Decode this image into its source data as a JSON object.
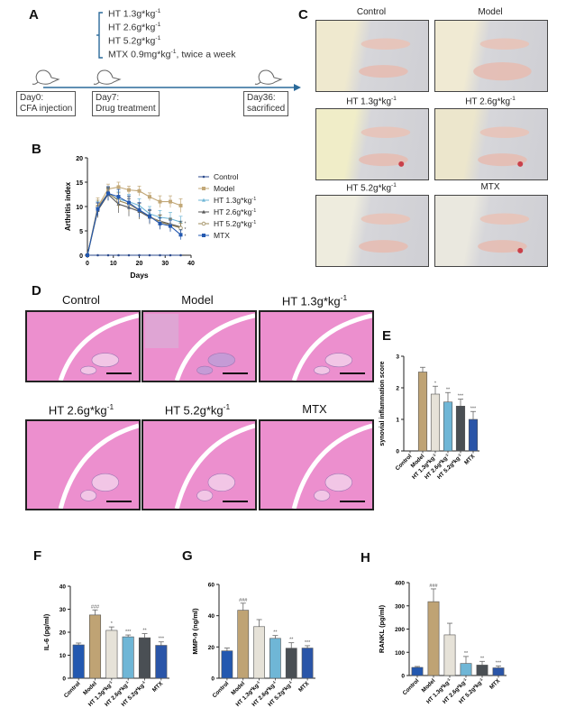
{
  "panels": {
    "A": "A",
    "B": "B",
    "C": "C",
    "D": "D",
    "E": "E",
    "F": "F",
    "G": "G",
    "H": "H"
  },
  "timeline": {
    "treatments": [
      "HT 1.3g*kg",
      "HT 2.6g*kg",
      "HT 5.2g*kg",
      "MTX 0.9mg*kg"
    ],
    "treatment_sup": "-1",
    "frequency": ",  twice a week",
    "events": [
      {
        "line1": "Day0:",
        "line2": "CFA injection"
      },
      {
        "line1": "Day7:",
        "line2": "Drug treatment"
      },
      {
        "line1": "Day36:",
        "line2": "sacrificed"
      }
    ]
  },
  "photos": {
    "titles": [
      "Control",
      "Model",
      "HT 1.3g*kg",
      "HT 2.6g*kg",
      "HT 5.2g*kg",
      "MTX"
    ],
    "sup": "-1",
    "has_sup": [
      false,
      false,
      true,
      true,
      true,
      false
    ]
  },
  "histology": {
    "titles": [
      "Control",
      "Model",
      "HT 1.3g*kg",
      "HT 2.6g*kg",
      "HT 5.2g*kg",
      "MTX"
    ],
    "sup": "-1",
    "has_sup": [
      false,
      false,
      true,
      true,
      true,
      false
    ]
  },
  "chart_data": [
    {
      "id": "B",
      "type": "line",
      "title": "",
      "xlabel": "Days",
      "ylabel": "Arthritis index",
      "xlim": [
        0,
        40
      ],
      "ylim": [
        0,
        20
      ],
      "xticks": [
        0,
        10,
        20,
        30,
        40
      ],
      "yticks": [
        0,
        5,
        10,
        15,
        20
      ],
      "x": [
        0,
        4,
        8,
        12,
        16,
        20,
        24,
        28,
        32,
        36
      ],
      "legend_position": "right",
      "series": [
        {
          "name": "Control",
          "color": "#2b4a8c",
          "marker": "dot",
          "values": [
            0,
            0,
            0,
            0,
            0,
            0,
            0,
            0,
            0,
            0
          ],
          "errors": [
            0,
            0,
            0,
            0,
            0,
            0,
            0,
            0,
            0,
            0
          ]
        },
        {
          "name": "Model",
          "color": "#c2a878",
          "marker": "square",
          "values": [
            0,
            10,
            13.6,
            14,
            13.4,
            13.2,
            12,
            11,
            11,
            10.2
          ],
          "errors": [
            0,
            1.8,
            1,
            1,
            0.8,
            1,
            0.8,
            1.2,
            1.2,
            1.4
          ]
        },
        {
          "name": "HT 1.3g*kg-1",
          "color": "#6fb6d6",
          "marker": "triangle",
          "values": [
            0,
            9.5,
            12.6,
            11.5,
            11,
            10.2,
            8.5,
            7.8,
            7.5,
            6.8
          ],
          "errors": [
            0,
            1.5,
            1.2,
            1.5,
            1.5,
            1.4,
            1.5,
            1.4,
            1.3,
            1.2
          ]
        },
        {
          "name": "HT 2.6g*kg-1",
          "color": "#555555",
          "marker": "triangle",
          "values": [
            0,
            9.2,
            12.5,
            10.5,
            9.8,
            9,
            7.8,
            7,
            6.4,
            5.8
          ],
          "errors": [
            0,
            1.5,
            1.3,
            1.8,
            1.8,
            1.6,
            1.4,
            1.3,
            1.2,
            1.2
          ]
        },
        {
          "name": "HT 5.2g*kg-1",
          "color": "#9c8a5a",
          "marker": "circle-open",
          "values": [
            0,
            9.8,
            12.8,
            11.2,
            10.5,
            9.2,
            8,
            6.8,
            6.2,
            5.6
          ],
          "errors": [
            0,
            1.5,
            1.2,
            1.6,
            1.5,
            1.6,
            1.4,
            1.4,
            1.2,
            1.0
          ]
        },
        {
          "name": "MTX",
          "color": "#2358b0",
          "marker": "square",
          "values": [
            0,
            9.5,
            12.7,
            12,
            10.8,
            9.3,
            8,
            6.5,
            6,
            4.2
          ],
          "errors": [
            0,
            1.3,
            1.4,
            1.5,
            1.4,
            1.5,
            1.4,
            1.2,
            1.2,
            1.0
          ]
        }
      ],
      "annotations": [
        "*",
        "*",
        "*"
      ]
    },
    {
      "id": "E",
      "type": "bar",
      "title": "",
      "xlabel": "",
      "ylabel": "synovial inflammation score",
      "ylim": [
        0,
        3
      ],
      "yticks": [
        0,
        1,
        2,
        3
      ],
      "categories": [
        "Control",
        "Model",
        "HT 1.3g*kg-1",
        "HT 2.6g*kg-1",
        "HT 5.2g*kg-1",
        "MTX"
      ],
      "values": [
        0,
        2.5,
        1.8,
        1.55,
        1.42,
        1.0
      ],
      "errors": [
        0,
        0.15,
        0.25,
        0.3,
        0.22,
        0.25
      ],
      "significance": [
        "",
        "",
        "*",
        "**",
        "***",
        "***"
      ],
      "colors": [
        "#2358b0",
        "#bfa374",
        "#e6e2d8",
        "#6fb6d6",
        "#4a4f54",
        "#2a55a8"
      ]
    },
    {
      "id": "F",
      "type": "bar",
      "title": "",
      "xlabel": "",
      "ylabel": "IL-6 (pg/ml)",
      "ylim": [
        0,
        40
      ],
      "yticks": [
        0,
        10,
        20,
        30,
        40
      ],
      "categories": [
        "Control",
        "Model",
        "HT 1.3g*kg-1",
        "HT 2.6g*kg-1",
        "HT 5.2g*kg-1",
        "MTX"
      ],
      "values": [
        14.5,
        27.5,
        20.8,
        18,
        17.6,
        14.3
      ],
      "errors": [
        0.8,
        2.2,
        1.5,
        0.8,
        1.8,
        1.5
      ],
      "significance": [
        "",
        "###",
        "*",
        "***",
        "**",
        "***"
      ],
      "colors": [
        "#2358b0",
        "#bfa374",
        "#e6e2d8",
        "#6fb6d6",
        "#4a4f54",
        "#2a55a8"
      ]
    },
    {
      "id": "G",
      "type": "bar",
      "title": "",
      "xlabel": "",
      "ylabel": "MMP-9 (ng/ml)",
      "ylim": [
        0,
        60
      ],
      "yticks": [
        0,
        20,
        40,
        60
      ],
      "categories": [
        "Control",
        "Model",
        "HT 1.3g*kg-1",
        "HT 2.6g*kg-1",
        "HT 5.2g*kg-1",
        "MTX"
      ],
      "values": [
        17.5,
        43.5,
        33,
        25.5,
        19.2,
        19.3
      ],
      "errors": [
        1.8,
        4.5,
        4.5,
        1.8,
        3.5,
        1.5
      ],
      "significance": [
        "",
        "###",
        "",
        "**",
        "**",
        "***"
      ],
      "colors": [
        "#2358b0",
        "#bfa374",
        "#e6e2d8",
        "#6fb6d6",
        "#4a4f54",
        "#2a55a8"
      ]
    },
    {
      "id": "H",
      "type": "bar",
      "title": "",
      "xlabel": "",
      "ylabel": "RANKL (pg/ml)",
      "ylim": [
        0,
        400
      ],
      "yticks": [
        0,
        100,
        200,
        300,
        400
      ],
      "categories": [
        "Control",
        "Model",
        "HT 1.3g*kg-1",
        "HT 2.6g*kg-1",
        "HT 5.2g*kg-1",
        "MTX"
      ],
      "values": [
        35,
        318,
        175,
        52,
        45,
        33
      ],
      "errors": [
        4,
        55,
        50,
        30,
        16,
        8
      ],
      "significance": [
        "",
        "###",
        "",
        "**",
        "**",
        "***"
      ],
      "colors": [
        "#2358b0",
        "#bfa374",
        "#e6e2d8",
        "#6fb6d6",
        "#4a4f54",
        "#2a55a8"
      ]
    }
  ]
}
